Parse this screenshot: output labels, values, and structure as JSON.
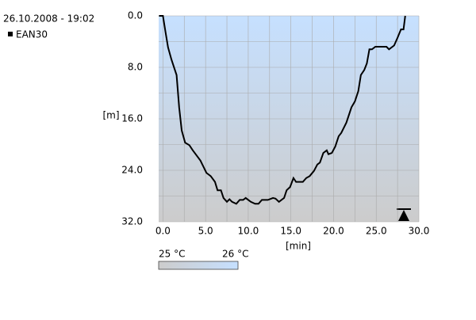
{
  "chart_data": {
    "type": "line",
    "timestamp": "26.10.2008 - 19:02",
    "x_label": "[min]",
    "y_label": "[m]",
    "series": [
      {
        "name": "EAN30",
        "color": "#000000",
        "x": [
          -0.46,
          0,
          0.3,
          0.6,
          1.0,
          1.6,
          1.9,
          2.2,
          2.6,
          3.1,
          3.5,
          4.4,
          5.1,
          5.6,
          6.1,
          6.4,
          6.8,
          7.1,
          7.5,
          7.8,
          8.1,
          8.6,
          9.0,
          9.4,
          9.7,
          10.3,
          10.8,
          11.2,
          11.6,
          12.3,
          12.9,
          13.2,
          13.6,
          14.2,
          14.5,
          14.9,
          15.3,
          15.6,
          16.4,
          16.8,
          17.2,
          17.7,
          18.1,
          18.4,
          18.8,
          19.2,
          19.4,
          19.8,
          20.2,
          20.6,
          20.9,
          21.5,
          21.8,
          22.1,
          22.5,
          22.9,
          23.2,
          23.6,
          23.9,
          24.2,
          24.5,
          24.9,
          26.2,
          26.5,
          27.1,
          27.5,
          27.9,
          28.2,
          28.4
        ],
        "values": [
          0,
          0,
          2.5,
          4.9,
          6.8,
          9.2,
          14.2,
          17.8,
          19.7,
          20.1,
          20.9,
          22.5,
          24.4,
          24.9,
          25.8,
          27.1,
          27.1,
          28.3,
          28.9,
          28.5,
          28.9,
          29.2,
          28.6,
          28.6,
          28.3,
          28.9,
          29.2,
          29.2,
          28.6,
          28.6,
          28.3,
          28.4,
          28.9,
          28.3,
          27.1,
          26.6,
          25.2,
          25.8,
          25.8,
          25.2,
          24.9,
          24.1,
          23.1,
          22.8,
          21.3,
          20.9,
          21.5,
          21.3,
          20.3,
          18.7,
          18.2,
          16.6,
          15.4,
          14.2,
          13.3,
          11.7,
          9.2,
          8.4,
          7.4,
          5.2,
          5.2,
          4.8,
          4.8,
          5.2,
          4.6,
          3.4,
          2.1,
          2.1,
          0
        ]
      }
    ],
    "xlim": [
      -0.5,
      30
    ],
    "ylim": [
      0,
      32
    ],
    "invert_y": true,
    "xticks": [
      {
        "value": 0,
        "label": "0.0"
      },
      {
        "value": 5,
        "label": "5.0"
      },
      {
        "value": 10,
        "label": "10.0"
      },
      {
        "value": 15,
        "label": "15.0"
      },
      {
        "value": 20,
        "label": "20.0"
      },
      {
        "value": 25,
        "label": "25.0"
      },
      {
        "value": 30,
        "label": "30.0"
      }
    ],
    "yticks": [
      {
        "value": 0,
        "label": "0.0"
      },
      {
        "value": 8,
        "label": "8.0"
      },
      {
        "value": 16,
        "label": "16.0"
      },
      {
        "value": 24,
        "label": "24.0"
      },
      {
        "value": 32,
        "label": "32.0"
      }
    ],
    "xminor": [
      2.5,
      7.5,
      12.5,
      17.5,
      22.5,
      27.5
    ],
    "yminor": [
      4,
      12,
      20,
      28
    ],
    "grid": true,
    "temperature_scale": {
      "low": "25 °C",
      "high": "26 °C",
      "low_color": "#cccccc",
      "high_color": "#c6e0ff"
    }
  }
}
